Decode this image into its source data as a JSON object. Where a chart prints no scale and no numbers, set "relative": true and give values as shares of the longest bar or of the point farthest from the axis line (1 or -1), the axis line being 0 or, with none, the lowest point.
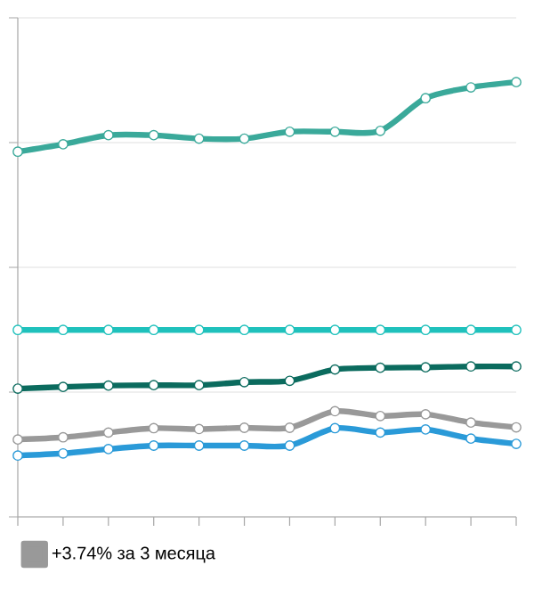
{
  "chart_data": {
    "type": "line",
    "relative": true,
    "categories": [
      null,
      null,
      null,
      null,
      null,
      null,
      null,
      null,
      null,
      null,
      null,
      null
    ],
    "series": [
      {
        "color": "#3aa99a",
        "values": [
          0.84,
          0.857,
          0.878,
          0.878,
          0.87,
          0.87,
          0.886,
          0.886,
          0.888,
          0.963,
          0.988,
          1
        ]
      },
      {
        "color": "#1fc1bc",
        "values": [
          0.43,
          0.43,
          0.43,
          0.43,
          0.43,
          0.43,
          0.43,
          0.43,
          0.43,
          0.43,
          0.43,
          0.43
        ]
      },
      {
        "color": "#0b6b5e",
        "values": [
          0.295,
          0.299,
          0.302,
          0.303,
          0.303,
          0.31,
          0.313,
          0.339,
          0.343,
          0.344,
          0.346,
          0.346
        ]
      },
      {
        "name": "+3.74% за 3 месяца",
        "color": "#999999",
        "values": [
          0.178,
          0.183,
          0.194,
          0.204,
          0.202,
          0.205,
          0.205,
          0.243,
          0.232,
          0.236,
          0.217,
          0.206
        ]
      },
      {
        "color": "#2a9ad8",
        "values": [
          0.141,
          0.146,
          0.156,
          0.164,
          0.164,
          0.164,
          0.164,
          0.204,
          0.194,
          0.201,
          0.18,
          0.168
        ]
      }
    ],
    "grid": "y",
    "legend": "bottom",
    "marker": "circle",
    "line_style": "solid"
  }
}
